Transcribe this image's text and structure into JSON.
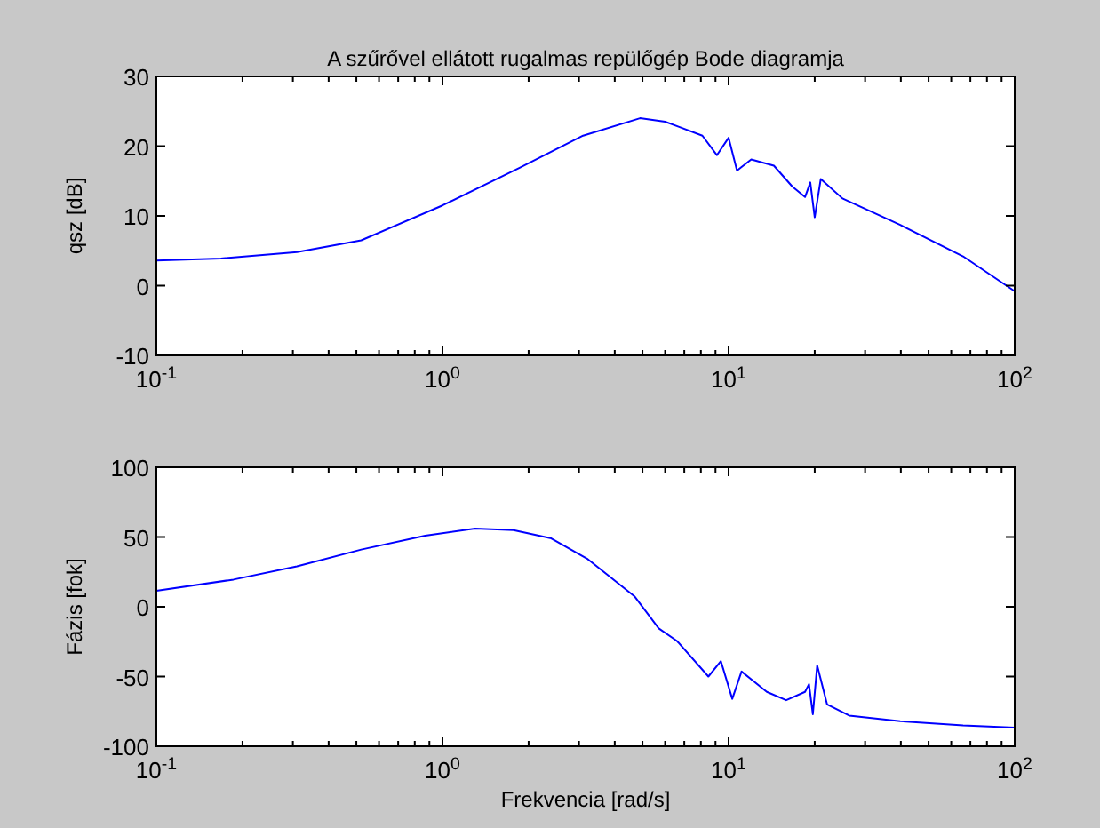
{
  "chart_data": [
    {
      "type": "line",
      "title": "A szűrővel ellátott rugalmas repülőgép Bode diagramja",
      "ylabel": "qsz [dB]",
      "log": "x",
      "grid": false,
      "marker": "none",
      "line_style": "solid",
      "xlim": [
        0.1,
        100
      ],
      "xticks": [
        {
          "value": 0.1,
          "label": "10$^{-1}$"
        },
        {
          "value": 1,
          "label": "10$^{0}$"
        },
        {
          "value": 10,
          "label": "10$^{1}$"
        },
        {
          "value": 100,
          "label": "10$^{2}$"
        }
      ],
      "ylim": [
        -10,
        30
      ],
      "yticks": [
        -10,
        0,
        10,
        20,
        30
      ],
      "series": [
        {
          "color": "#0000ff",
          "x": [
            0.1,
            0.168,
            0.31,
            0.52,
            1.0,
            1.86,
            3.1,
            4.9,
            6.0,
            8.1,
            9.1,
            10,
            10.7,
            12,
            14.4,
            16.7,
            18.5,
            19.3,
            20.0,
            21.0,
            25,
            39.8,
            66,
            100
          ],
          "values": [
            3.6,
            3.9,
            4.8,
            6.5,
            11.5,
            16.9,
            21.5,
            24,
            23.5,
            21.5,
            18.7,
            21.2,
            16.5,
            18.1,
            17.2,
            14.2,
            12.7,
            14.8,
            9.8,
            15.3,
            12.5,
            8.7,
            4.2,
            -0.8
          ]
        }
      ]
    },
    {
      "type": "line",
      "xlabel": "Frekvencia [rad/s]",
      "ylabel": "Fázis [fok]",
      "log": "x",
      "grid": false,
      "marker": "none",
      "line_style": "solid",
      "xlim": [
        0.1,
        100
      ],
      "xticks": [
        {
          "value": 0.1,
          "label": "10$^{-1}$"
        },
        {
          "value": 1,
          "label": "10$^{0}$"
        },
        {
          "value": 10,
          "label": "10$^{1}$"
        },
        {
          "value": 100,
          "label": "10$^{2}$"
        }
      ],
      "ylim": [
        -100,
        100
      ],
      "yticks": [
        -100,
        -50,
        0,
        50,
        100
      ],
      "series": [
        {
          "color": "#0000ff",
          "x": [
            0.1,
            0.186,
            0.31,
            0.52,
            0.87,
            1.3,
            1.77,
            2.4,
            3.2,
            4.7,
            5.7,
            6.6,
            8.5,
            9.4,
            10.3,
            11.1,
            13.6,
            15.9,
            18.5,
            19.1,
            19.7,
            20.4,
            22.1,
            26.4,
            39.8,
            66,
            100
          ],
          "values": [
            11.4,
            19.5,
            29,
            41,
            51,
            56,
            55,
            49,
            34.5,
            7.3,
            -15.5,
            -24.5,
            -50,
            -39,
            -66,
            -46.4,
            -61,
            -67,
            -61,
            -55.5,
            -77,
            -42,
            -70,
            -78,
            -82,
            -85,
            -86.6
          ]
        }
      ]
    }
  ]
}
